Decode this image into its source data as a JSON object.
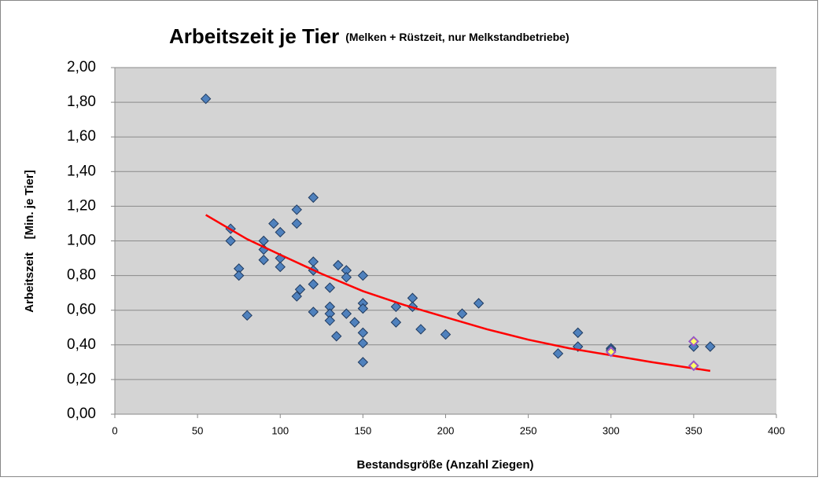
{
  "chart_data": {
    "type": "scatter",
    "title": "Arbeitszeit je Tier",
    "subtitle": "(Melken + Rüstzeit, nur Melkstandbetriebe)",
    "x_label": "Bestandsgröße (Anzahl Ziegen)",
    "y_label": "Arbeitszeit    [Min. je Tier]",
    "xlim": [
      0,
      400
    ],
    "xticks": [
      0,
      50,
      100,
      150,
      200,
      250,
      300,
      350,
      400
    ],
    "ylim": [
      0,
      2
    ],
    "yticks": [
      {
        "value": 0,
        "label": "0,00"
      },
      {
        "value": 0.2,
        "label": "0,20"
      },
      {
        "value": 0.4,
        "label": "0,40"
      },
      {
        "value": 0.6,
        "label": "0,60"
      },
      {
        "value": 0.8,
        "label": "0,80"
      },
      {
        "value": 1,
        "label": "1,00"
      },
      {
        "value": 1.2,
        "label": "1,20"
      },
      {
        "value": 1.4,
        "label": "1,40"
      },
      {
        "value": 1.6,
        "label": "1,60"
      },
      {
        "value": 1.8,
        "label": "1,80"
      },
      {
        "value": 2,
        "label": "2,00"
      }
    ],
    "grid": true,
    "series": [
      {
        "color": "#4f81bd",
        "x": [
          55,
          70,
          70,
          75,
          75,
          80,
          90,
          90,
          90,
          96,
          100,
          100,
          100,
          110,
          110,
          110,
          112,
          120,
          120,
          120,
          120,
          120,
          130,
          130,
          130,
          130,
          134,
          135,
          140,
          140,
          140,
          145,
          150,
          150,
          150,
          150,
          150,
          150,
          170,
          170,
          180,
          180,
          185,
          200,
          210,
          220,
          268,
          280,
          280,
          300,
          300,
          350,
          350,
          350,
          360
        ],
        "values": [
          1.82,
          1.07,
          1.0,
          0.84,
          0.8,
          0.57,
          1.0,
          0.95,
          0.89,
          1.1,
          1.05,
          0.9,
          0.85,
          1.18,
          1.1,
          0.68,
          0.72,
          1.25,
          0.88,
          0.83,
          0.75,
          0.59,
          0.73,
          0.62,
          0.58,
          0.54,
          0.45,
          0.86,
          0.83,
          0.79,
          0.58,
          0.53,
          0.8,
          0.64,
          0.61,
          0.47,
          0.41,
          0.3,
          0.62,
          0.53,
          0.67,
          0.62,
          0.49,
          0.46,
          0.58,
          0.64,
          0.35,
          0.47,
          0.39,
          0.38,
          0.37,
          0.42,
          0.39,
          0.28,
          0.39
        ]
      },
      {
        "color": "#ffff66",
        "x": [
          300,
          350,
          350
        ],
        "values": [
          0.36,
          0.42,
          0.28
        ]
      }
    ],
    "trendline": {
      "color": "#ff0000",
      "x": [
        55,
        80,
        100,
        125,
        150,
        175,
        200,
        225,
        250,
        275,
        300,
        325,
        360
      ],
      "values": [
        1.15,
        1.01,
        0.92,
        0.81,
        0.71,
        0.63,
        0.56,
        0.49,
        0.43,
        0.38,
        0.34,
        0.3,
        0.25
      ]
    }
  }
}
